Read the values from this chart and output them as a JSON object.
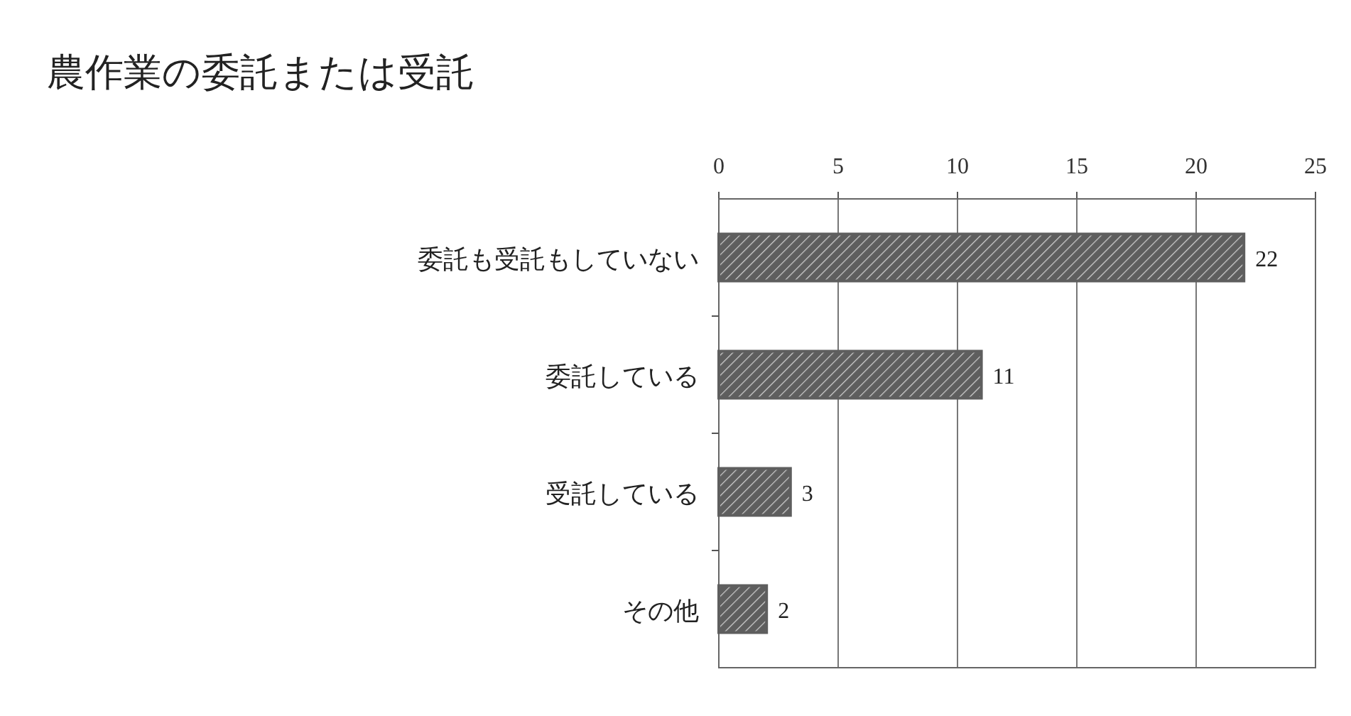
{
  "chart_data": {
    "type": "bar",
    "orientation": "horizontal",
    "title": "農作業の委託または受託",
    "categories": [
      "委託も受託もしていない",
      "委託している",
      "受託している",
      "その他"
    ],
    "values": [
      22,
      11,
      3,
      2
    ],
    "color": "#5e5e5e",
    "xlim": [
      0,
      25
    ],
    "xticks": [
      0,
      5,
      10,
      15,
      20,
      25
    ],
    "grid": "x",
    "data_labels": true
  }
}
